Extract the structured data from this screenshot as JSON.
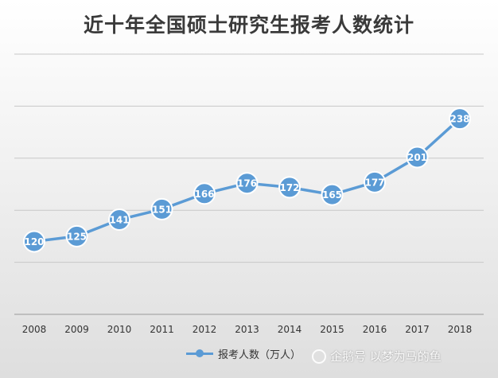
{
  "chart_data": {
    "type": "line",
    "title": "近十年全国硕士研究生报考人数统计",
    "categories": [
      "2008",
      "2009",
      "2010",
      "2011",
      "2012",
      "2013",
      "2014",
      "2015",
      "2016",
      "2017",
      "2018"
    ],
    "series": [
      {
        "name": "报考人数（万人）",
        "values": [
          120,
          125,
          141,
          151,
          166,
          176,
          172,
          165,
          177,
          201,
          238
        ],
        "color": "#5b9bd5"
      }
    ],
    "ylim": [
      50,
      300
    ],
    "grid": true,
    "legend": "bottom",
    "data_labels": true
  },
  "watermark": {
    "text": "企鹅号 以梦为马的鱼"
  }
}
